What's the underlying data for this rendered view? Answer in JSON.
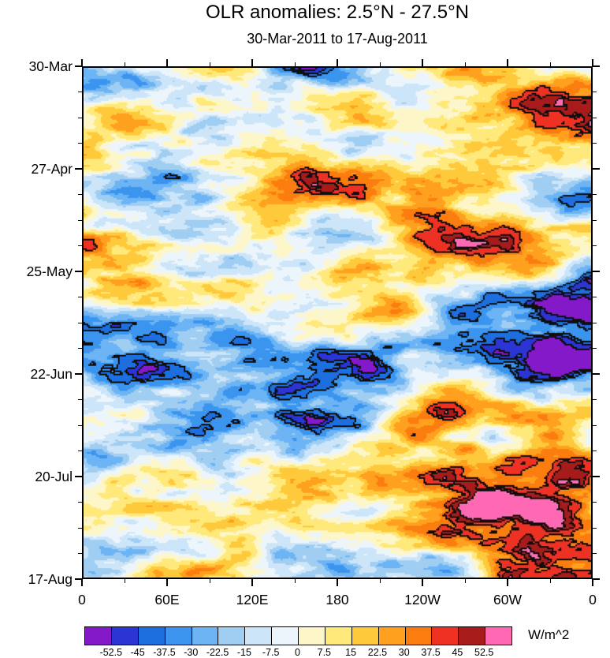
{
  "figure": {
    "title": "OLR anomalies: 2.5°N - 27.5°N",
    "subtitle": "30-Mar-2011 to 17-Aug-2011"
  },
  "chart_data": {
    "type": "heatmap",
    "title": "OLR anomalies: 2.5°N - 27.5°N",
    "subtitle": "30-Mar-2011 to 17-Aug-2011",
    "units_label": "W/m^2",
    "x_axis": {
      "ticks": [
        "0",
        "60E",
        "120E",
        "180",
        "120W",
        "60W",
        "0"
      ],
      "range_deg": [
        0,
        360
      ],
      "minor_divisions_per_major": 2
    },
    "y_axis": {
      "ticks": [
        "30-Mar",
        "27-Apr",
        "25-May",
        "22-Jun",
        "20-Jul",
        "17-Aug"
      ],
      "direction": "time increases downward",
      "minor_divisions_per_major": 4
    },
    "colorbar": {
      "boundary_labels": [
        "-52.5",
        "-45",
        "-37.5",
        "-30",
        "-22.5",
        "-15",
        "-7.5",
        "0",
        "7.5",
        "15",
        "22.5",
        "30",
        "37.5",
        "45",
        "52.5"
      ],
      "colors": [
        "#8319c9",
        "#2b35d4",
        "#1d6fe0",
        "#3b95ef",
        "#6cb4f4",
        "#a0cef3",
        "#cde5f8",
        "#ecf5fb",
        "#fdf6c9",
        "#ffe97a",
        "#ffc93c",
        "#ffa01e",
        "#fb7d0f",
        "#ee3123",
        "#a81b1b",
        "#ff69b4"
      ]
    },
    "field_range": [
      -60,
      60
    ],
    "grid": false,
    "legend_position": "bottom"
  }
}
